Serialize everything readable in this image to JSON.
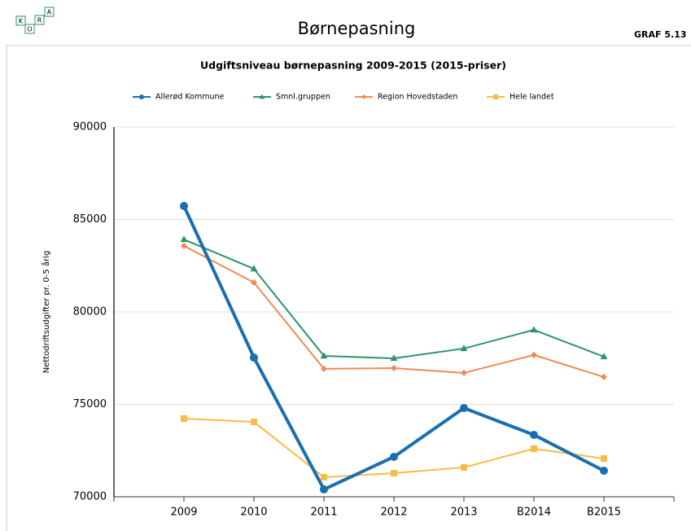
{
  "header": {
    "logo": [
      "K",
      "O",
      "R",
      "A"
    ],
    "title": "Børnepasning",
    "graph_id": "GRAF 5.13"
  },
  "chart_data": {
    "type": "line",
    "title": "Udgiftsniveau børnepasning 2009-2015 (2015-priser)",
    "y_label": "Nettodriftsudgifter pr. 0-5 årig",
    "categories": [
      "2009",
      "2010",
      "2011",
      "2012",
      "2013",
      "B2014",
      "B2015"
    ],
    "ylim": [
      70000,
      90000
    ],
    "yticks": [
      70000,
      75000,
      80000,
      85000,
      90000
    ],
    "grid": true,
    "legend": "top",
    "series": [
      {
        "name": "Allerød Kommune",
        "color": "#1a6fb0",
        "marker": "circle",
        "line_width": 4,
        "values": [
          85730,
          77530,
          70400,
          72160,
          74800,
          73350,
          71410
        ]
      },
      {
        "name": "Smnl.gruppen",
        "color": "#2a9668",
        "marker": "triangle",
        "line_width": 2,
        "values": [
          83920,
          82330,
          77620,
          77490,
          78020,
          79030,
          77580
        ]
      },
      {
        "name": "Region Hovedstaden",
        "color": "#f08a52",
        "marker": "diamond",
        "line_width": 2,
        "values": [
          83570,
          81590,
          76920,
          76960,
          76700,
          77670,
          76480
        ]
      },
      {
        "name": "Hele landet",
        "color": "#f9bb45",
        "marker": "square",
        "line_width": 2,
        "values": [
          74230,
          74050,
          71060,
          71280,
          71590,
          72600,
          72070
        ]
      }
    ]
  }
}
